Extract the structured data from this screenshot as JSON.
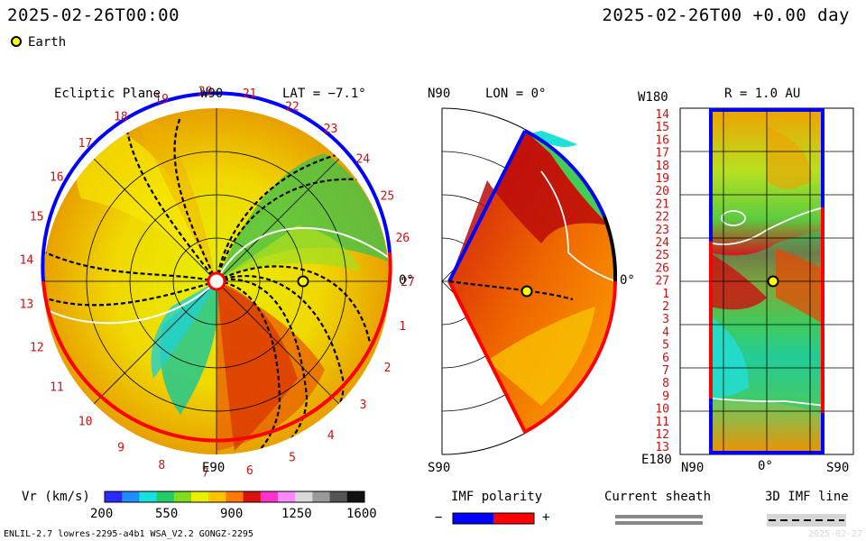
{
  "header": {
    "left_datetime": "2025-02-26T00:00",
    "right_datetime": "2025-02-26T00 +0.00 day",
    "earth_legend": "Earth"
  },
  "panels": {
    "ecliptic": {
      "title": "Ecliptic Plane",
      "top_label": "W90",
      "bottom_label": "E90",
      "right_label": "0°",
      "lat_label": "LAT = −7.1°",
      "carrington_ticks": [
        "1",
        "2",
        "3",
        "4",
        "5",
        "6",
        "7",
        "8",
        "9",
        "10",
        "11",
        "12",
        "13",
        "14",
        "15",
        "16",
        "17",
        "18",
        "19",
        "20",
        "21",
        "22",
        "23",
        "24",
        "25",
        "26",
        "27"
      ]
    },
    "meridional": {
      "top_label": "N90",
      "bottom_label": "S90",
      "right_label": "0°",
      "lon_label": "LON = 0°"
    },
    "map": {
      "title": "R = 1.0 AU",
      "top_left_label": "W180",
      "bottom_left_label": "E180",
      "x_labels": [
        "N90",
        "0°",
        "S90"
      ],
      "row_labels": [
        "14",
        "15",
        "16",
        "17",
        "18",
        "19",
        "20",
        "21",
        "22",
        "23",
        "24",
        "25",
        "26",
        "27",
        "1",
        "2",
        "3",
        "4",
        "5",
        "6",
        "7",
        "8",
        "9",
        "10",
        "11",
        "12",
        "13"
      ]
    }
  },
  "legend": {
    "vr": {
      "label": "Vr (km/s)",
      "ticks": [
        "200",
        "550",
        "900",
        "1250",
        "1600"
      ],
      "colormap": [
        "#2a2aff",
        "#1f8cff",
        "#16e0e0",
        "#22cc66",
        "#7fdc1e",
        "#e8f000",
        "#ffc400",
        "#ff7a00",
        "#dd1010",
        "#ff33cc",
        "#ff88ff",
        "#d9d9d9",
        "#9a9a9a",
        "#555555",
        "#111111"
      ]
    },
    "imf": {
      "label": "IMF polarity",
      "minus": "−",
      "plus": "+",
      "negative_color": "#0000ff",
      "positive_color": "#ff0000"
    },
    "sheath": {
      "label": "Current sheath"
    },
    "imf3d": {
      "label": "3D IMF line"
    }
  },
  "footer": {
    "model": "ENLIL-2.7 lowres-2295-a4b1 WSA_V2.2 GONGZ-2295",
    "faint_right": "2025-02-27"
  }
}
